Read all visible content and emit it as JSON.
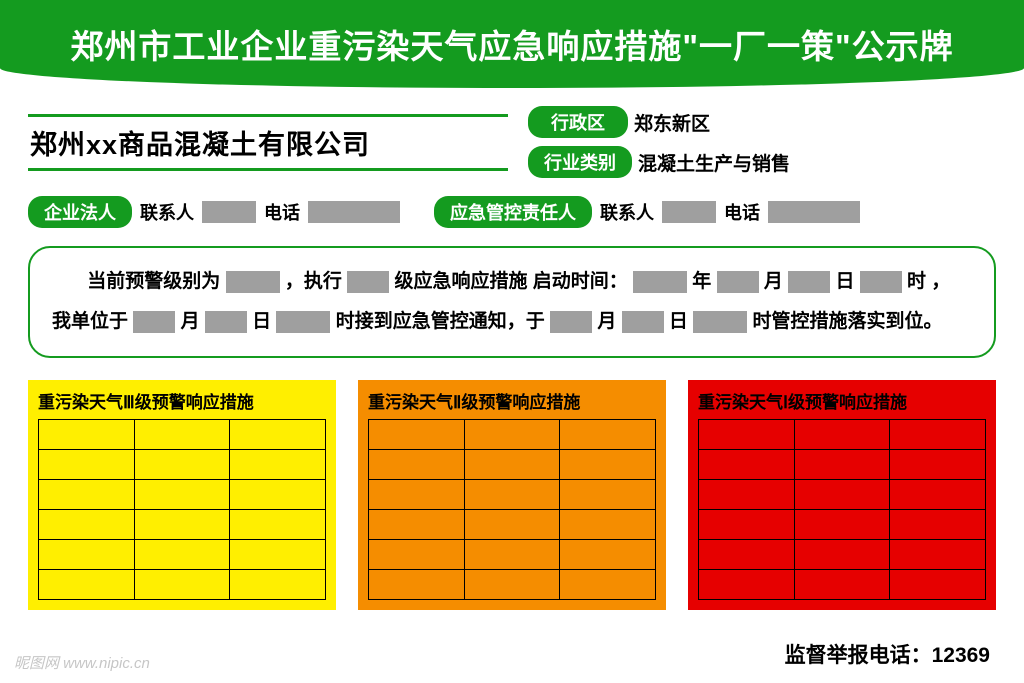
{
  "colors": {
    "green": "#149b1f",
    "gray": "#9f9f9f",
    "yellow": "#ffef00",
    "orange": "#f58d00",
    "red": "#e60000",
    "white": "#ffffff",
    "black": "#000000"
  },
  "header": {
    "title": "郑州市工业企业重污染天气应急响应措施\"一厂一策\"公示牌"
  },
  "company": {
    "name": "郑州xx商品混凝土有限公司"
  },
  "info": {
    "district_label": "行政区",
    "district_value": "郑东新区",
    "industry_label": "行业类别",
    "industry_value": "混凝土生产与销售"
  },
  "contacts": {
    "legal_label": "企业法人",
    "contact_label": "联系人",
    "phone_label": "电话",
    "emergency_label": "应急管控责任人"
  },
  "notice": {
    "t1": "当前预警级别为",
    "t2": "，执行",
    "t3": "级应急响应措施  启动时间：",
    "year": "年",
    "month": "月",
    "day": "日",
    "hour": "时",
    "comma": "，",
    "t4": "我单位于",
    "t5": "时接到应急管控通知，于",
    "t6": "时管控措施落实到位。"
  },
  "tables": {
    "rows": 6,
    "cols": 3,
    "items": [
      {
        "title": "重污染天气Ⅲ级预警响应措施",
        "bg": "#ffef00"
      },
      {
        "title": "重污染天气Ⅱ级预警响应措施",
        "bg": "#f58d00"
      },
      {
        "title": "重污染天气Ⅰ级预警响应措施",
        "bg": "#e60000"
      }
    ]
  },
  "footer": {
    "hotline_label": "监督举报电话：",
    "hotline_number": "12369"
  },
  "watermark": {
    "site": "昵图网 www.nipic.cn"
  }
}
